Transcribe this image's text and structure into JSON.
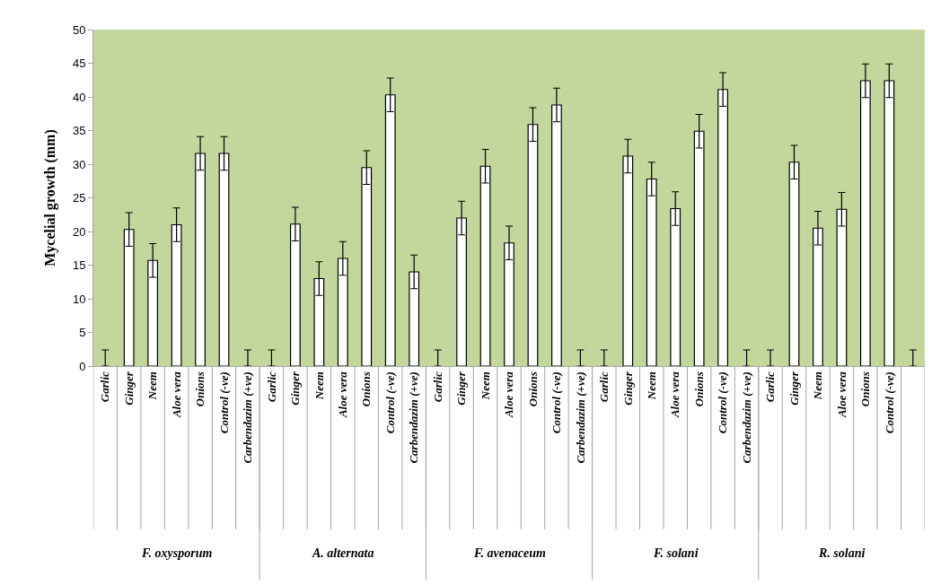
{
  "chart_data": {
    "type": "bar",
    "ylabel": "Mycelial growth (mm)",
    "categories": [
      "Garlic",
      "Ginger",
      "Neem",
      "Aloe vera",
      "Onions",
      "Control (-ve)",
      "Carbendazim (+ve)",
      "Garlic",
      "Ginger",
      "Neem",
      "Aloe vera",
      "Onions",
      "Control (-ve)",
      "Carbendazim (+ve)",
      "Garlic",
      "Ginger",
      "Neem",
      "Aloe vera",
      "Onions",
      "Control (-ve)",
      "Carbendazim (+ve)",
      "Garlic",
      "Ginger",
      "Neem",
      "Aloe vera",
      "Onions",
      "Control (-ve)",
      "Carbendazim (+ve)",
      "Garlic",
      "Ginger",
      "Neem",
      "Aloe vera",
      "Onions",
      "Control (-ve)",
      null
    ],
    "values": [
      0,
      20.3,
      15.7,
      21.0,
      31.6,
      31.6,
      0,
      0,
      21.1,
      13.0,
      16.0,
      29.5,
      40.3,
      14.0,
      0,
      22.0,
      29.7,
      18.3,
      35.9,
      38.8,
      0,
      0,
      31.2,
      27.8,
      23.4,
      34.9,
      41.1,
      0,
      0,
      30.3,
      20.5,
      23.3,
      42.4,
      42.4,
      0
    ],
    "errors": [
      [
        0,
        2.4
      ],
      2.5,
      2.5,
      2.5,
      2.5,
      2.5,
      [
        0,
        2.4
      ],
      [
        0,
        2.4
      ],
      2.5,
      2.5,
      2.5,
      2.5,
      2.5,
      2.5,
      [
        0,
        2.4
      ],
      2.5,
      2.5,
      2.5,
      2.5,
      2.5,
      [
        0,
        2.4
      ],
      [
        0,
        2.4
      ],
      2.5,
      2.5,
      2.5,
      2.5,
      2.5,
      [
        0,
        2.4
      ],
      [
        0,
        2.4
      ],
      2.5,
      2.5,
      2.5,
      2.5,
      2.5,
      [
        0,
        2.4
      ]
    ],
    "color": "#ffffff",
    "annotations": [
      "F. oxysporum",
      "A. alternata",
      "F. avenaceum",
      "F. solani",
      "R. solani"
    ],
    "ylim": [
      0,
      50
    ],
    "yticks": [
      0,
      5,
      10,
      15,
      20,
      25,
      30,
      35,
      40,
      45,
      50
    ]
  }
}
